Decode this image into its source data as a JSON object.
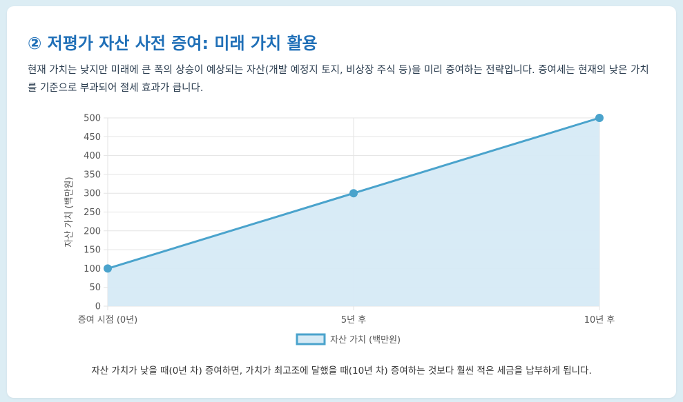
{
  "card": {
    "title": "② 저평가 자산 사전 증여: 미래 가치 활용",
    "description": "현재 가치는 낮지만 미래에 큰 폭의 상승이 예상되는 자산(개발 예정지 토지, 비상장 주식 등)을 미리 증여하는 전략입니다. 증여세는 현재의 낮은 가치를 기준으로 부과되어 절세 효과가 큽니다.",
    "footnote": "자산 가치가 낮을 때(0년 차) 증여하면, 가치가 최고조에 달했을 때(10년 차) 증여하는 것보다 훨씬 적은 세금을 납부하게 됩니다."
  },
  "colors": {
    "title": "#1f6fb7",
    "line": "#4aa3cc",
    "fill": "#d6eaf5",
    "grid": "#e3e3e3",
    "text": "#555555"
  },
  "chart_data": {
    "type": "area",
    "categories": [
      "증여 시점 (0년)",
      "5년 후",
      "10년 후"
    ],
    "series": [
      {
        "name": "자산 가치 (백만원)",
        "values": [
          100,
          300,
          500
        ]
      }
    ],
    "ylabel": "자산 가치 (백만원)",
    "ylim": [
      0,
      500
    ],
    "yticks": [
      "0",
      "50",
      "100",
      "150",
      "200",
      "250",
      "300",
      "350",
      "400",
      "450",
      "500"
    ],
    "grid": true,
    "legend": "bottom"
  }
}
